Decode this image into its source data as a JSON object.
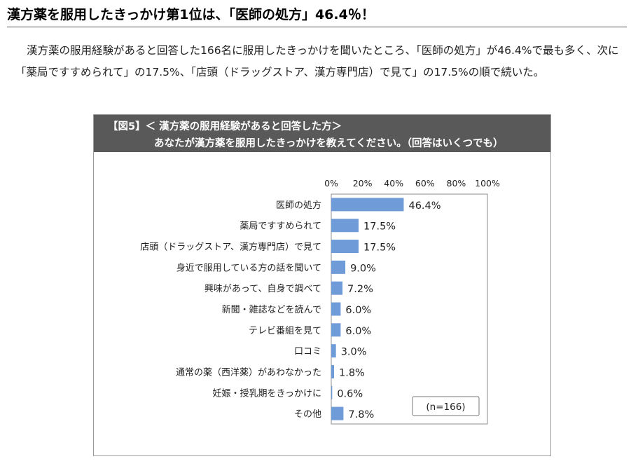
{
  "headline": "漢方薬を服用したきっかけ第1位は、「医師の処方」46.4％！",
  "intro": "漢方薬の服用経験があると回答した166名に服用したきっかけを聞いたところ、「医師の処方」が46.4%で最も多く、次に「薬局ですすめられて」の17.5%、「店頭（ドラッグストア、漢方専門店）で見て」の17.5%の順で続いた。",
  "figure": {
    "title_line1": "【図5】＜ 漢方薬の服用経験があると回答した方＞",
    "title_line2": "あなたが漢方薬を服用したきっかけを教えてください。（回答はいくつでも）",
    "sample_note": "(n=166)"
  },
  "chart_data": {
    "type": "bar",
    "orientation": "horizontal",
    "categories": [
      "医師の処方",
      "薬局ですすめられて",
      "店頭（ドラッグストア、漢方専門店）で見て",
      "身近で服用している方の話を聞いて",
      "興味があって、自身で調べて",
      "新聞・雑誌などを読んで",
      "テレビ番組を見て",
      "口コミ",
      "通常の薬（西洋薬）があわなかった",
      "妊娠・授乳期をきっかけに",
      "その他"
    ],
    "values": [
      46.4,
      17.5,
      17.5,
      9.0,
      7.2,
      6.0,
      6.0,
      3.0,
      1.8,
      0.6,
      7.8
    ],
    "value_labels": [
      "46.4%",
      "17.5%",
      "17.5%",
      "9.0%",
      "7.2%",
      "6.0%",
      "6.0%",
      "3.0%",
      "1.8%",
      "0.6%",
      "7.8%"
    ],
    "xlim": [
      0,
      100
    ],
    "xticks": [
      "0%",
      "20%",
      "40%",
      "60%",
      "80%",
      "100%"
    ],
    "bar_color": "#6f9bd8",
    "grid": false
  }
}
